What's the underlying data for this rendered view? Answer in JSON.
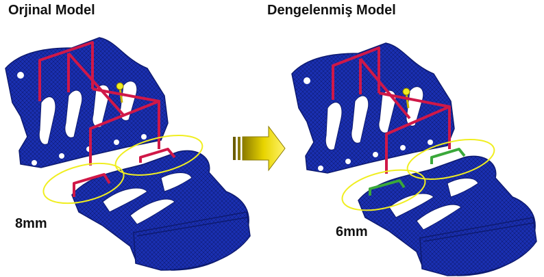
{
  "left_panel": {
    "title": "Orjinal Model",
    "dimension": "8mm"
  },
  "right_panel": {
    "title": "Dengelenmiş Model",
    "dimension": "6mm"
  },
  "colors": {
    "mesh": "#1a2fb0",
    "mesh_dark": "#0d1a70",
    "frame": "#d01848",
    "bracket_right": "#3aa83a",
    "highlight": "#f0ee20",
    "arrow": "#e8d400"
  },
  "icons": {
    "transition": "right-arrow-icon"
  }
}
